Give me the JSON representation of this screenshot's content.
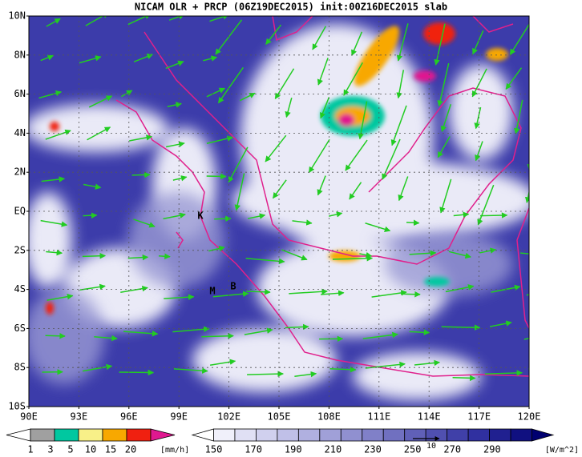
{
  "header": {
    "title": "NICAM OLR + PRCP (06Z19DEC2015) init:00Z16DEC2015 slab"
  },
  "map": {
    "lat_labels": [
      "10N",
      "8N",
      "6N",
      "4N",
      "2N",
      "EQ",
      "2S",
      "4S",
      "6S",
      "8S",
      "10S"
    ],
    "lon_labels": [
      "90E",
      "93E",
      "96E",
      "99E",
      "102E",
      "105E",
      "108E",
      "111E",
      "114E",
      "117E",
      "120E"
    ],
    "stations": [
      {
        "label": "K"
      },
      {
        "label": "M"
      },
      {
        "label": "B"
      }
    ],
    "vector_scale": "10"
  },
  "precip_colorbar": {
    "labels": [
      1,
      3,
      5,
      10,
      15,
      20
    ],
    "unit": "[mm/h]",
    "colors": [
      "#ffffff",
      "#a0a0a0",
      "#00c8a0",
      "#f8f088",
      "#f8a800",
      "#f02010",
      "#e01890"
    ]
  },
  "olr_colorbar": {
    "labels": [
      150,
      170,
      190,
      210,
      230,
      250,
      270,
      290
    ],
    "unit": "[W/m^2]",
    "colors": [
      "#ffffff",
      "#f0f0fa",
      "#e0e0f4",
      "#d0d0ee",
      "#c0c0e8",
      "#b0b0e0",
      "#a0a0d8",
      "#9090d0",
      "#8080c8",
      "#7070c0",
      "#6060b8",
      "#5050b0",
      "#4040a8",
      "#3030a0",
      "#202090",
      "#101080",
      "#000070"
    ]
  }
}
